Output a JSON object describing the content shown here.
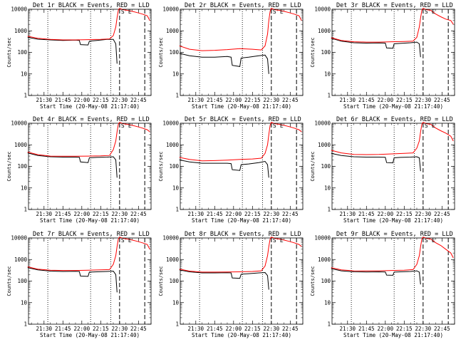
{
  "figure": {
    "common": {
      "xlabel": "Start Time (20-May-08 21:17:40)",
      "ylabel": "Counts/sec",
      "x_tick_labels": [
        "21:30",
        "21:45",
        "22:00",
        "22:15",
        "22:30",
        "22:45"
      ],
      "y_tick_labels": [
        "1",
        "10",
        "100",
        "1000",
        "10000"
      ]
    }
  },
  "chart_data": [
    {
      "type": "line",
      "title": "Det 1r BLACK = Events, RED = LLD",
      "x_axis": "time",
      "xlim": [
        "21:17:40",
        "22:55"
      ],
      "ylim": [
        1,
        10000
      ],
      "y_scale": "log",
      "marker_labels": [
        "S",
        "E"
      ],
      "dotted_lines_at": [
        "21:33",
        "22:07",
        "22:23"
      ],
      "dashed_lines_at": [
        "22:30",
        "22:50"
      ],
      "series": [
        {
          "name": "Events",
          "color": "#000000",
          "x": [
            "21:17",
            "21:25",
            "21:35",
            "21:45",
            "21:55",
            "21:58",
            "21:59",
            "22:05",
            "22:06",
            "22:12",
            "22:20",
            "22:25",
            "22:27",
            "22:28"
          ],
          "y": [
            500,
            410,
            380,
            360,
            370,
            360,
            230,
            220,
            330,
            360,
            400,
            400,
            250,
            30
          ]
        },
        {
          "name": "LLD",
          "color": "#ff0000",
          "x": [
            "21:17",
            "21:25",
            "21:35",
            "21:45",
            "21:55",
            "22:05",
            "22:15",
            "22:22",
            "22:25",
            "22:27",
            "22:28",
            "22:29",
            "22:30",
            "22:33",
            "22:36",
            "22:40",
            "22:44",
            "22:48",
            "22:52",
            "22:54"
          ],
          "y": [
            560,
            450,
            400,
            380,
            380,
            390,
            400,
            420,
            600,
            1500,
            4000,
            9000,
            11000,
            9500,
            9000,
            8000,
            7000,
            6000,
            5000,
            3000
          ]
        }
      ]
    },
    {
      "type": "line",
      "title": "Det 2r BLACK = Events, RED = LLD",
      "x_axis": "time",
      "xlim": [
        "21:17:40",
        "22:55"
      ],
      "ylim": [
        1,
        10000
      ],
      "y_scale": "log",
      "marker_labels": [
        "S",
        "E"
      ],
      "dotted_lines_at": [
        "21:33",
        "22:07",
        "22:23"
      ],
      "dashed_lines_at": [
        "22:30",
        "22:50"
      ],
      "series": [
        {
          "name": "Events",
          "color": "#000000",
          "x": [
            "21:17",
            "21:25",
            "21:35",
            "21:45",
            "21:55",
            "21:58",
            "21:59",
            "22:05",
            "22:06",
            "22:12",
            "22:20",
            "22:25",
            "22:27",
            "22:28"
          ],
          "y": [
            90,
            70,
            60,
            60,
            65,
            60,
            25,
            22,
            55,
            60,
            70,
            75,
            50,
            10
          ]
        },
        {
          "name": "LLD",
          "color": "#ff0000",
          "x": [
            "21:17",
            "21:25",
            "21:35",
            "21:45",
            "21:55",
            "22:05",
            "22:15",
            "22:22",
            "22:25",
            "22:27",
            "22:28",
            "22:29",
            "22:30",
            "22:33",
            "22:36",
            "22:40",
            "22:44",
            "22:48",
            "22:52",
            "22:54"
          ],
          "y": [
            200,
            140,
            120,
            125,
            135,
            150,
            140,
            130,
            200,
            700,
            3000,
            8000,
            11000,
            9500,
            9000,
            8000,
            7000,
            6000,
            5000,
            3000
          ]
        }
      ]
    },
    {
      "type": "line",
      "title": "Det 3r BLACK = Events, RED = LLD",
      "x_axis": "time",
      "xlim": [
        "21:17:40",
        "22:55"
      ],
      "ylim": [
        1,
        10000
      ],
      "y_scale": "log",
      "marker_labels": [
        "S",
        "E"
      ],
      "dotted_lines_at": [
        "21:33",
        "22:07",
        "22:23"
      ],
      "dashed_lines_at": [
        "22:30",
        "22:50"
      ],
      "series": [
        {
          "name": "Events",
          "color": "#000000",
          "x": [
            "21:17",
            "21:25",
            "21:35",
            "21:45",
            "21:55",
            "22:00",
            "22:01",
            "22:06",
            "22:07",
            "22:12",
            "22:20",
            "22:25",
            "22:27",
            "22:28"
          ],
          "y": [
            450,
            330,
            280,
            270,
            275,
            270,
            160,
            155,
            250,
            260,
            280,
            300,
            250,
            60
          ]
        },
        {
          "name": "LLD",
          "color": "#ff0000",
          "x": [
            "21:17",
            "21:25",
            "21:35",
            "21:45",
            "21:55",
            "22:05",
            "22:15",
            "22:22",
            "22:25",
            "22:27",
            "22:28",
            "22:29",
            "22:30",
            "22:33",
            "22:36",
            "22:40",
            "22:44",
            "22:48",
            "22:52",
            "22:54"
          ],
          "y": [
            480,
            360,
            310,
            300,
            300,
            310,
            320,
            330,
            500,
            1500,
            4000,
            9000,
            11000,
            9500,
            9000,
            6000,
            4500,
            3500,
            3000,
            2000
          ]
        }
      ]
    },
    {
      "type": "line",
      "title": "Det 4r BLACK = Events, RED = LLD",
      "x_axis": "time",
      "xlim": [
        "21:17:40",
        "22:55"
      ],
      "ylim": [
        1,
        10000
      ],
      "y_scale": "log",
      "marker_labels": [
        "S",
        "E"
      ],
      "dotted_lines_at": [
        "21:33",
        "22:07",
        "22:23"
      ],
      "dashed_lines_at": [
        "22:30",
        "22:50"
      ],
      "series": [
        {
          "name": "Events",
          "color": "#000000",
          "x": [
            "21:17",
            "21:25",
            "21:35",
            "21:45",
            "21:55",
            "21:58",
            "21:59",
            "22:05",
            "22:06",
            "22:12",
            "22:20",
            "22:25",
            "22:27",
            "22:28"
          ],
          "y": [
            420,
            320,
            280,
            270,
            270,
            265,
            160,
            150,
            250,
            260,
            270,
            280,
            200,
            30
          ]
        },
        {
          "name": "LLD",
          "color": "#ff0000",
          "x": [
            "21:17",
            "21:25",
            "21:35",
            "21:45",
            "21:55",
            "22:05",
            "22:15",
            "22:22",
            "22:25",
            "22:27",
            "22:28",
            "22:29",
            "22:30",
            "22:33",
            "22:36",
            "22:40",
            "22:44",
            "22:48",
            "22:52",
            "22:54"
          ],
          "y": [
            460,
            350,
            300,
            295,
            295,
            300,
            305,
            320,
            600,
            1500,
            4000,
            9000,
            11000,
            9500,
            9000,
            8000,
            7000,
            6000,
            5000,
            4000
          ]
        }
      ]
    },
    {
      "type": "line",
      "title": "Det 5r BLACK = Events, RED = LLD",
      "x_axis": "time",
      "xlim": [
        "21:17:40",
        "22:55"
      ],
      "ylim": [
        1,
        10000
      ],
      "y_scale": "log",
      "marker_labels": [
        "S",
        "E"
      ],
      "dotted_lines_at": [
        "21:33",
        "22:07",
        "22:23"
      ],
      "dashed_lines_at": [
        "22:30",
        "22:50"
      ],
      "series": [
        {
          "name": "Events",
          "color": "#000000",
          "x": [
            "21:17",
            "21:25",
            "21:35",
            "21:45",
            "21:55",
            "21:58",
            "21:59",
            "22:05",
            "22:06",
            "22:12",
            "22:20",
            "22:25",
            "22:27",
            "22:28"
          ],
          "y": [
            200,
            160,
            140,
            140,
            140,
            135,
            70,
            65,
            120,
            130,
            150,
            170,
            120,
            30
          ]
        },
        {
          "name": "LLD",
          "color": "#ff0000",
          "x": [
            "21:17",
            "21:25",
            "21:35",
            "21:45",
            "21:55",
            "22:05",
            "22:15",
            "22:22",
            "22:25",
            "22:27",
            "22:28",
            "22:29",
            "22:30",
            "22:33",
            "22:36",
            "22:40",
            "22:44",
            "22:48",
            "22:52",
            "22:54"
          ],
          "y": [
            260,
            210,
            180,
            185,
            195,
            210,
            220,
            240,
            400,
            1000,
            3000,
            8000,
            11000,
            9500,
            9000,
            8000,
            7000,
            6000,
            5000,
            4000
          ]
        }
      ]
    },
    {
      "type": "line",
      "title": "Det 6r BLACK = Events, RED = LLD",
      "x_axis": "time",
      "xlim": [
        "21:17:40",
        "22:55"
      ],
      "ylim": [
        1,
        10000
      ],
      "y_scale": "log",
      "marker_labels": [
        "S",
        "E"
      ],
      "dotted_lines_at": [
        "21:33",
        "22:07",
        "22:23"
      ],
      "dashed_lines_at": [
        "22:30",
        "22:50"
      ],
      "series": [
        {
          "name": "Events",
          "color": "#000000",
          "x": [
            "21:17",
            "21:25",
            "21:35",
            "21:45",
            "21:55",
            "22:00",
            "22:01",
            "22:06",
            "22:07",
            "22:12",
            "22:20",
            "22:25",
            "22:27",
            "22:28"
          ],
          "y": [
            400,
            320,
            280,
            270,
            270,
            265,
            150,
            145,
            250,
            260,
            270,
            280,
            250,
            60
          ]
        },
        {
          "name": "LLD",
          "color": "#ff0000",
          "x": [
            "21:17",
            "21:25",
            "21:35",
            "21:45",
            "21:55",
            "22:05",
            "22:15",
            "22:22",
            "22:25",
            "22:27",
            "22:28",
            "22:29",
            "22:30",
            "22:33",
            "22:36",
            "22:40",
            "22:44",
            "22:48",
            "22:52",
            "22:54"
          ],
          "y": [
            560,
            420,
            360,
            350,
            360,
            380,
            400,
            420,
            700,
            1500,
            4000,
            9000,
            11000,
            9500,
            9000,
            6000,
            4500,
            3500,
            2500,
            1500
          ]
        }
      ]
    },
    {
      "type": "line",
      "title": "Det 7r BLACK = Events, RED = LLD",
      "x_axis": "time",
      "xlim": [
        "21:17:40",
        "22:55"
      ],
      "ylim": [
        1,
        10000
      ],
      "y_scale": "log",
      "marker_labels": [
        "S",
        "E"
      ],
      "dotted_lines_at": [
        "21:33",
        "22:07",
        "22:23"
      ],
      "dashed_lines_at": [
        "22:30",
        "22:50"
      ],
      "series": [
        {
          "name": "Events",
          "color": "#000000",
          "x": [
            "21:17",
            "21:25",
            "21:35",
            "21:45",
            "21:55",
            "21:58",
            "21:59",
            "22:05",
            "22:06",
            "22:12",
            "22:20",
            "22:25",
            "22:27",
            "22:28"
          ],
          "y": [
            420,
            330,
            290,
            280,
            285,
            280,
            170,
            165,
            260,
            270,
            280,
            290,
            200,
            30
          ]
        },
        {
          "name": "LLD",
          "color": "#ff0000",
          "x": [
            "21:17",
            "21:25",
            "21:35",
            "21:45",
            "21:55",
            "22:05",
            "22:15",
            "22:22",
            "22:25",
            "22:27",
            "22:28",
            "22:29",
            "22:30",
            "22:33",
            "22:36",
            "22:40",
            "22:44",
            "22:48",
            "22:52",
            "22:54"
          ],
          "y": [
            460,
            360,
            320,
            310,
            310,
            320,
            330,
            340,
            600,
            1500,
            4000,
            9000,
            11000,
            9500,
            9000,
            8000,
            7000,
            6000,
            5000,
            3000
          ]
        }
      ]
    },
    {
      "type": "line",
      "title": "Det 8r BLACK = Events, RED = LLD",
      "x_axis": "time",
      "xlim": [
        "21:17:40",
        "22:55"
      ],
      "ylim": [
        1,
        10000
      ],
      "y_scale": "log",
      "marker_labels": [
        "S",
        "E"
      ],
      "dotted_lines_at": [
        "21:33",
        "22:07",
        "22:23"
      ],
      "dashed_lines_at": [
        "22:30",
        "22:50"
      ],
      "series": [
        {
          "name": "Events",
          "color": "#000000",
          "x": [
            "21:17",
            "21:25",
            "21:35",
            "21:45",
            "21:55",
            "21:58",
            "21:59",
            "22:05",
            "22:06",
            "22:12",
            "22:20",
            "22:25",
            "22:27",
            "22:28"
          ],
          "y": [
            330,
            270,
            240,
            240,
            245,
            240,
            140,
            135,
            210,
            220,
            240,
            250,
            180,
            40
          ]
        },
        {
          "name": "LLD",
          "color": "#ff0000",
          "x": [
            "21:17",
            "21:25",
            "21:35",
            "21:45",
            "21:55",
            "22:05",
            "22:15",
            "22:22",
            "22:25",
            "22:27",
            "22:28",
            "22:29",
            "22:30",
            "22:33",
            "22:36",
            "22:40",
            "22:44",
            "22:48",
            "22:52",
            "22:54"
          ],
          "y": [
            360,
            290,
            260,
            260,
            265,
            270,
            280,
            300,
            500,
            1500,
            4000,
            9000,
            11000,
            9500,
            9000,
            8000,
            7000,
            6000,
            5000,
            4000
          ]
        }
      ]
    },
    {
      "type": "line",
      "title": "Det 9r BLACK = Events, RED = LLD",
      "x_axis": "time",
      "xlim": [
        "21:17:40",
        "22:55"
      ],
      "ylim": [
        1,
        10000
      ],
      "y_scale": "log",
      "marker_labels": [
        "S",
        "E"
      ],
      "dotted_lines_at": [
        "21:33",
        "22:07",
        "22:23"
      ],
      "dashed_lines_at": [
        "22:30",
        "22:50"
      ],
      "series": [
        {
          "name": "Events",
          "color": "#000000",
          "x": [
            "21:17",
            "21:25",
            "21:35",
            "21:45",
            "21:55",
            "22:00",
            "22:01",
            "22:06",
            "22:07",
            "22:12",
            "22:20",
            "22:25",
            "22:27",
            "22:28"
          ],
          "y": [
            380,
            300,
            270,
            265,
            270,
            265,
            190,
            185,
            260,
            270,
            280,
            300,
            260,
            70
          ]
        },
        {
          "name": "LLD",
          "color": "#ff0000",
          "x": [
            "21:17",
            "21:25",
            "21:35",
            "21:45",
            "21:55",
            "22:05",
            "22:15",
            "22:22",
            "22:25",
            "22:27",
            "22:28",
            "22:29",
            "22:30",
            "22:33",
            "22:36",
            "22:40",
            "22:44",
            "22:48",
            "22:52",
            "22:54"
          ],
          "y": [
            420,
            330,
            300,
            295,
            300,
            310,
            320,
            340,
            600,
            1500,
            4000,
            9000,
            11000,
            9500,
            9000,
            6000,
            4500,
            3000,
            2000,
            1200
          ]
        }
      ]
    }
  ]
}
